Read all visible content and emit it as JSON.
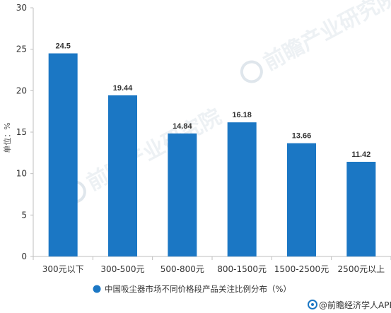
{
  "chart_data": {
    "type": "bar",
    "categories": [
      "300元以下",
      "300-500元",
      "500-800元",
      "800-1500元",
      "1500-2500元",
      "2500元以上"
    ],
    "series": [
      {
        "name": "中国吸尘器市场不同价格段产品关注比例分布（%）",
        "values": [
          24.5,
          19.44,
          14.84,
          16.18,
          13.66,
          11.42
        ],
        "value_labels": [
          "24.5",
          "19.44",
          "14.84",
          "16.18",
          "13.66",
          "11.42"
        ]
      }
    ],
    "ylabel": "单位：%",
    "ylim": [
      0,
      30
    ],
    "yticks": [
      0,
      5,
      10,
      15,
      20,
      25,
      30
    ],
    "grid": false,
    "legend_position": "bottom-center",
    "bar_color": "#1b77c4",
    "axis_color": "#bfbfbf"
  },
  "legend": {
    "label": "中国吸尘器市场不同价格段产品关注比例分布（%）"
  },
  "footer": {
    "source_text": "@前瞻经济学人APP",
    "logo_icon": "qianzhan-logo-icon"
  },
  "watermark": {
    "text": "前瞻产业研究院",
    "icon": "qianzhan-logo-icon"
  }
}
